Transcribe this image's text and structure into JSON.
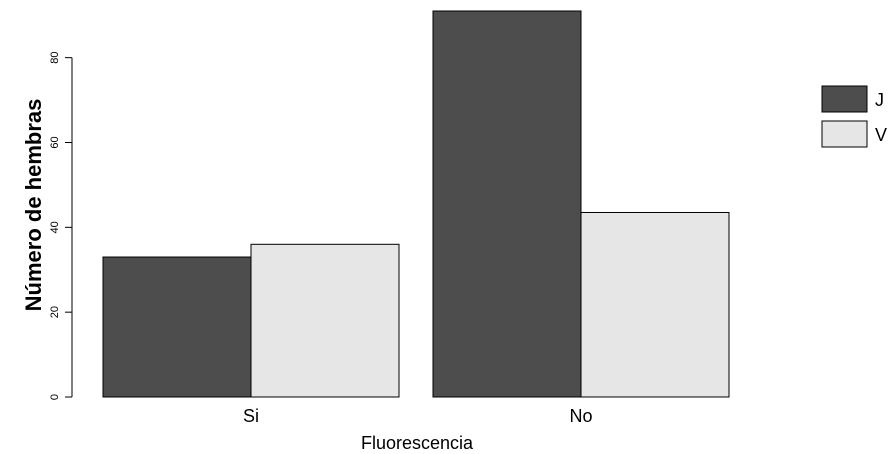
{
  "chart_data": {
    "type": "bar",
    "title": "",
    "xlabel": "Fluorescencia",
    "ylabel": "Número de hembras",
    "categories": [
      "Si",
      "No"
    ],
    "series": [
      {
        "name": "J",
        "values": [
          33,
          91
        ],
        "color": "#4d4d4d"
      },
      {
        "name": "V",
        "values": [
          36,
          43.5
        ],
        "color": "#e6e6e6"
      }
    ],
    "yticks": [
      0,
      20,
      40,
      60,
      80
    ],
    "ylim": [
      0,
      91
    ],
    "grid": false,
    "legend_position": "right"
  }
}
